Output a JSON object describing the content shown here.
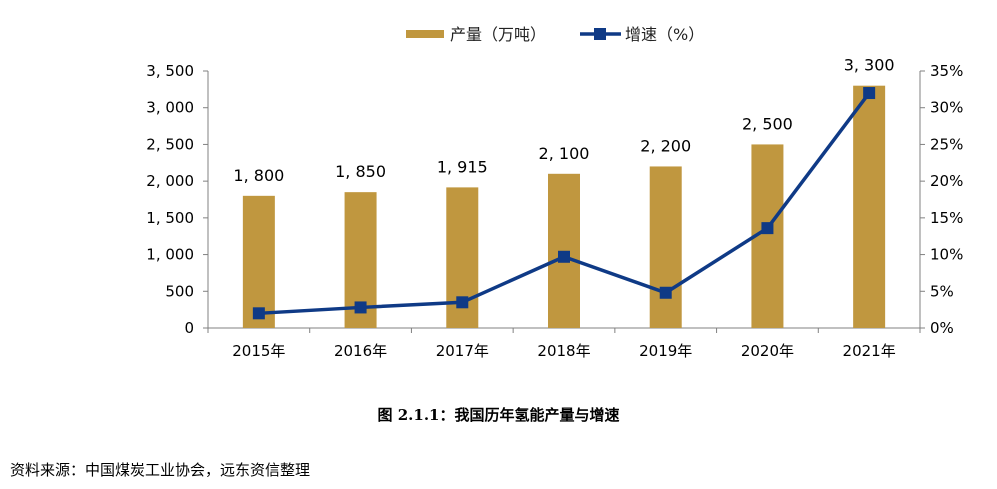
{
  "chart_data": {
    "type": "bar+line",
    "categories": [
      "2015年",
      "2016年",
      "2017年",
      "2018年",
      "2019年",
      "2020年",
      "2021年"
    ],
    "series": [
      {
        "name": "产量（万吨）",
        "type": "bar",
        "axis": "left",
        "color": "#C0973F",
        "values": [
          1800,
          1850,
          1915,
          2100,
          2200,
          2500,
          3300
        ],
        "labels": [
          "1, 800",
          "1, 850",
          "1, 915",
          "2, 100",
          "2, 200",
          "2, 500",
          "3, 300"
        ]
      },
      {
        "name": "增速（%）",
        "type": "line",
        "axis": "right",
        "color": "#0F3A86",
        "marker": "square",
        "values": [
          2.0,
          2.8,
          3.5,
          9.7,
          4.8,
          13.6,
          32.0
        ]
      }
    ],
    "left_axis": {
      "ylim": [
        0,
        3500
      ],
      "ticks": [
        0,
        500,
        1000,
        1500,
        2000,
        2500,
        3000,
        3500
      ],
      "tick_labels": [
        "0",
        "500",
        "1, 000",
        "1, 500",
        "2, 000",
        "2, 500",
        "3, 000",
        "3, 500"
      ]
    },
    "right_axis": {
      "ylim": [
        0,
        35
      ],
      "ticks": [
        0,
        5,
        10,
        15,
        20,
        25,
        30,
        35
      ],
      "tick_labels": [
        "0%",
        "5%",
        "10%",
        "15%",
        "20%",
        "25%",
        "30%",
        "35%"
      ]
    },
    "grid": false,
    "legend": "top-center"
  },
  "caption": "图 2.1.1：我国历年氢能产量与增速",
  "source": "资料来源：中国煤炭工业协会，远东资信整理"
}
